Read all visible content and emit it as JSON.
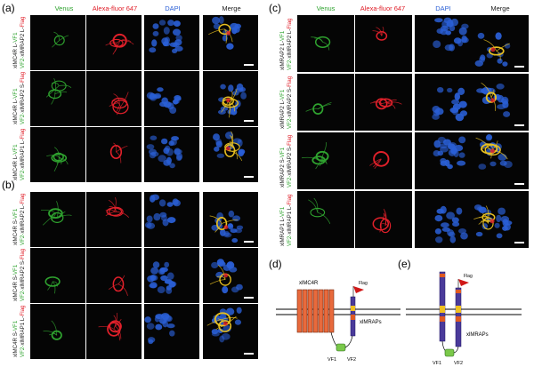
{
  "figure": {
    "panels": {
      "a": {
        "letter": "(a)",
        "headers": [
          "Venus",
          "Alexa-fluor 647",
          "DAPI",
          "Merge"
        ],
        "rows": [
          {
            "l1a": "xlMC4R L-",
            "l1b": "VF1",
            "l2a": "VF2-",
            "l2b": "xlMRAP2 L-",
            "l2c": "Flag"
          },
          {
            "l1a": "xlMC4R L-",
            "l1b": "VF1",
            "l2a": "VF2-",
            "l2b": "xlMRAP2 S-",
            "l2c": "Flag"
          },
          {
            "l1a": "xlMC4R L-",
            "l1b": "VF1",
            "l2a": "VF2-",
            "l2b": "xlMRAP1 L-",
            "l2c": "Flag"
          }
        ]
      },
      "b": {
        "letter": "(b)",
        "rows": [
          {
            "l1a": "xlMC4R S-",
            "l1b": "VF1",
            "l2a": "VF2-",
            "l2b": "xlMRAP2 L-",
            "l2c": "Flag"
          },
          {
            "l1a": "xlMC4R S-",
            "l1b": "VF1",
            "l2a": "VF2-",
            "l2b": "xlMRAP2 S-",
            "l2c": "Flag"
          },
          {
            "l1a": "xlMC4R S-",
            "l1b": "VF1",
            "l2a": "VF2-",
            "l2b": "xlMRAP1 L-",
            "l2c": "Flag"
          }
        ]
      },
      "c": {
        "letter": "(c)",
        "headers": [
          "Venus",
          "Alexa-fluor 647",
          "DAPI",
          "Merge"
        ],
        "rows": [
          {
            "l1a": "xlMRAP2 L-",
            "l1b": "VF1",
            "l2a": "VF2-",
            "l2b": "xlMRAP2 L-",
            "l2c": "Flag"
          },
          {
            "l1a": "xlMRAP2 L-",
            "l1b": "VF1",
            "l2a": "VF2-",
            "l2b": "xlMRAP2 S-",
            "l2c": "Flag"
          },
          {
            "l1a": "xlMRAP2 S-",
            "l1b": "VF1",
            "l2a": "VF2-",
            "l2b": "xlMRAP2 S-",
            "l2c": "Flag"
          },
          {
            "l1a": "xlMRAP1 L-",
            "l1b": "VF1",
            "l2a": "VF2-",
            "l2b": "xlMRAP1 L-",
            "l2c": "Flag"
          }
        ]
      },
      "d": {
        "letter": "(d)",
        "receptor": "xlMC4R",
        "accessory": "xlMRAPs",
        "tag": "Flag",
        "vf1": "VF1",
        "vf2": "VF2"
      },
      "e": {
        "letter": "(e)",
        "accessory": "xlMRAPs",
        "tag": "Flag",
        "vf1": "VF1",
        "vf2": "VF2"
      }
    },
    "colors": {
      "venus": "#2fa32f",
      "alexa": "#e0202a",
      "dapi": "#2a5fd6",
      "merge": "#e8c020",
      "receptor_fill": "#e86a3c",
      "mrap_fill": "#4a3a9a"
    }
  }
}
